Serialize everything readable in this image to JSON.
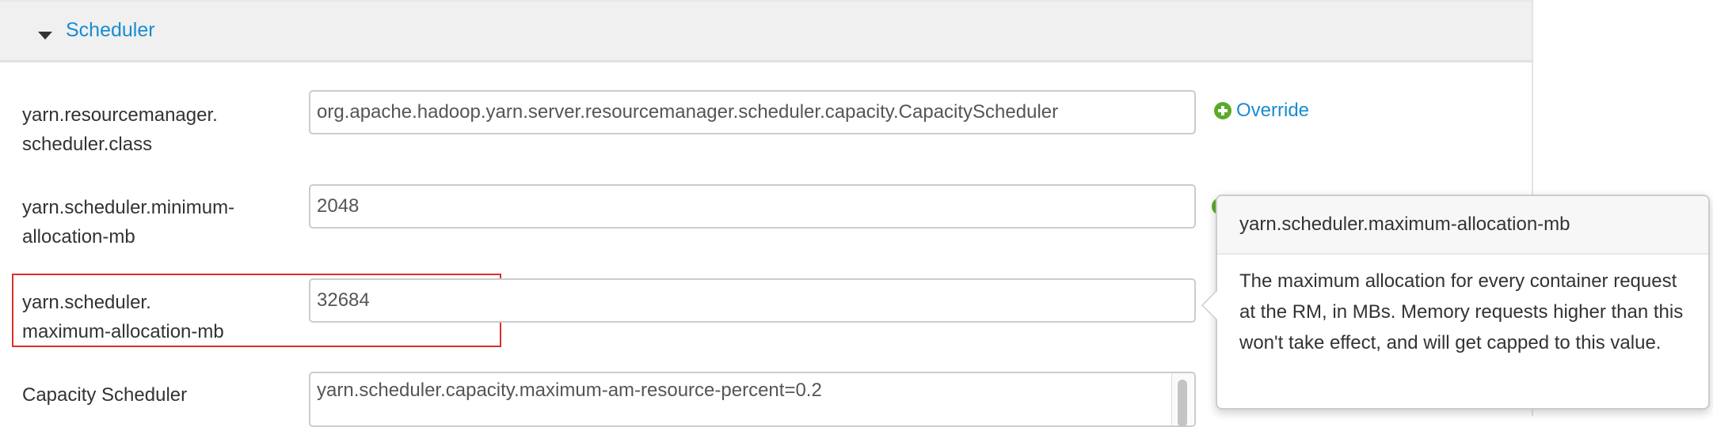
{
  "section": {
    "title": "Scheduler",
    "expanded": true
  },
  "fields": [
    {
      "label_lines": [
        "yarn.resourcemanager.",
        "scheduler.class"
      ],
      "value": "org.apache.hadoop.yarn.server.resourcemanager.scheduler.capacity.CapacityScheduler",
      "override_label": "Override"
    },
    {
      "label_lines": [
        "yarn.scheduler.minimum-",
        "allocation-mb"
      ],
      "value": "2048"
    },
    {
      "label_lines": [
        "yarn.scheduler.",
        "maximum-allocation-mb"
      ],
      "value": "32684",
      "highlighted": true
    },
    {
      "label_lines": [
        "Capacity Scheduler"
      ],
      "value": "yarn.scheduler.capacity.maximum-am-resource-percent=0.2"
    }
  ],
  "popover": {
    "title": "yarn.scheduler.maximum-allocation-mb",
    "body": "The maximum allocation for every container request at the RM, in MBs. Memory requests higher than this won't take effect, and will get capped to this value."
  },
  "colors": {
    "link": "#1a8bd0",
    "override_icon": "#5aaa2a",
    "highlight": "#d9302a"
  }
}
